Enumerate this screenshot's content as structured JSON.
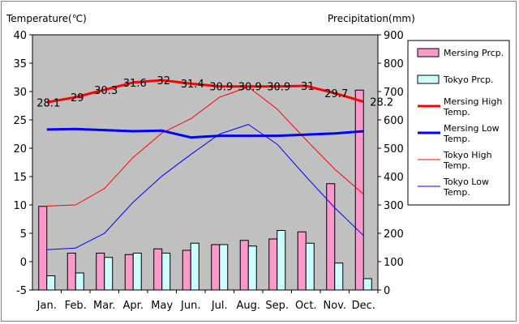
{
  "chart_data": {
    "type": "bar+line",
    "title": "",
    "categories": [
      "Jan.",
      "Feb.",
      "Mar.",
      "Apr.",
      "May",
      "Jun.",
      "Jul.",
      "Aug.",
      "Sep.",
      "Oct.",
      "Nov.",
      "Dec."
    ],
    "y_left": {
      "label": "Temperature(℃)",
      "min": -5,
      "max": 40,
      "step": 5
    },
    "y_right": {
      "label": "Precipitation(mm)",
      "min": 0,
      "max": 900,
      "step": 100
    },
    "bar_series": [
      {
        "name": "Mersing Prcp.",
        "color": "#ff99cc",
        "values": [
          295,
          130,
          130,
          125,
          145,
          140,
          160,
          175,
          180,
          205,
          375,
          705
        ]
      },
      {
        "name": "Tokyo Prcp.",
        "color": "#ccffff",
        "values": [
          50,
          60,
          115,
          130,
          130,
          165,
          160,
          155,
          210,
          165,
          95,
          40
        ]
      }
    ],
    "line_series": [
      {
        "name": "Mersing High Temp.",
        "color": "#ff0000",
        "width": 3,
        "values": [
          28.1,
          29.0,
          30.3,
          31.6,
          32.0,
          31.4,
          30.9,
          30.9,
          30.9,
          31.0,
          29.7,
          28.2
        ]
      },
      {
        "name": "Mersing Low Temp.",
        "color": "#0000ff",
        "width": 3,
        "values": [
          23.3,
          23.4,
          23.2,
          23.0,
          23.1,
          21.9,
          22.2,
          22.2,
          22.2,
          22.4,
          22.6,
          23.0
        ]
      },
      {
        "name": "Tokyo High Temp.",
        "color": "#ff0000",
        "width": 1,
        "values": [
          9.8,
          10.0,
          12.9,
          18.4,
          22.7,
          25.2,
          29.0,
          30.8,
          26.9,
          21.5,
          16.3,
          11.9
        ]
      },
      {
        "name": "Tokyo Low Temp.",
        "color": "#0000ff",
        "width": 1,
        "values": [
          2.1,
          2.4,
          5.0,
          10.5,
          15.1,
          18.9,
          22.5,
          24.2,
          20.7,
          15.0,
          9.5,
          4.6
        ]
      }
    ],
    "data_labels": [
      "28.1",
      "29",
      "30.3",
      "31.6",
      "32",
      "31.4",
      "30.9",
      "30.9",
      "30.9",
      "31",
      "29.7",
      "28.2"
    ],
    "grid": false,
    "legend": "right"
  }
}
